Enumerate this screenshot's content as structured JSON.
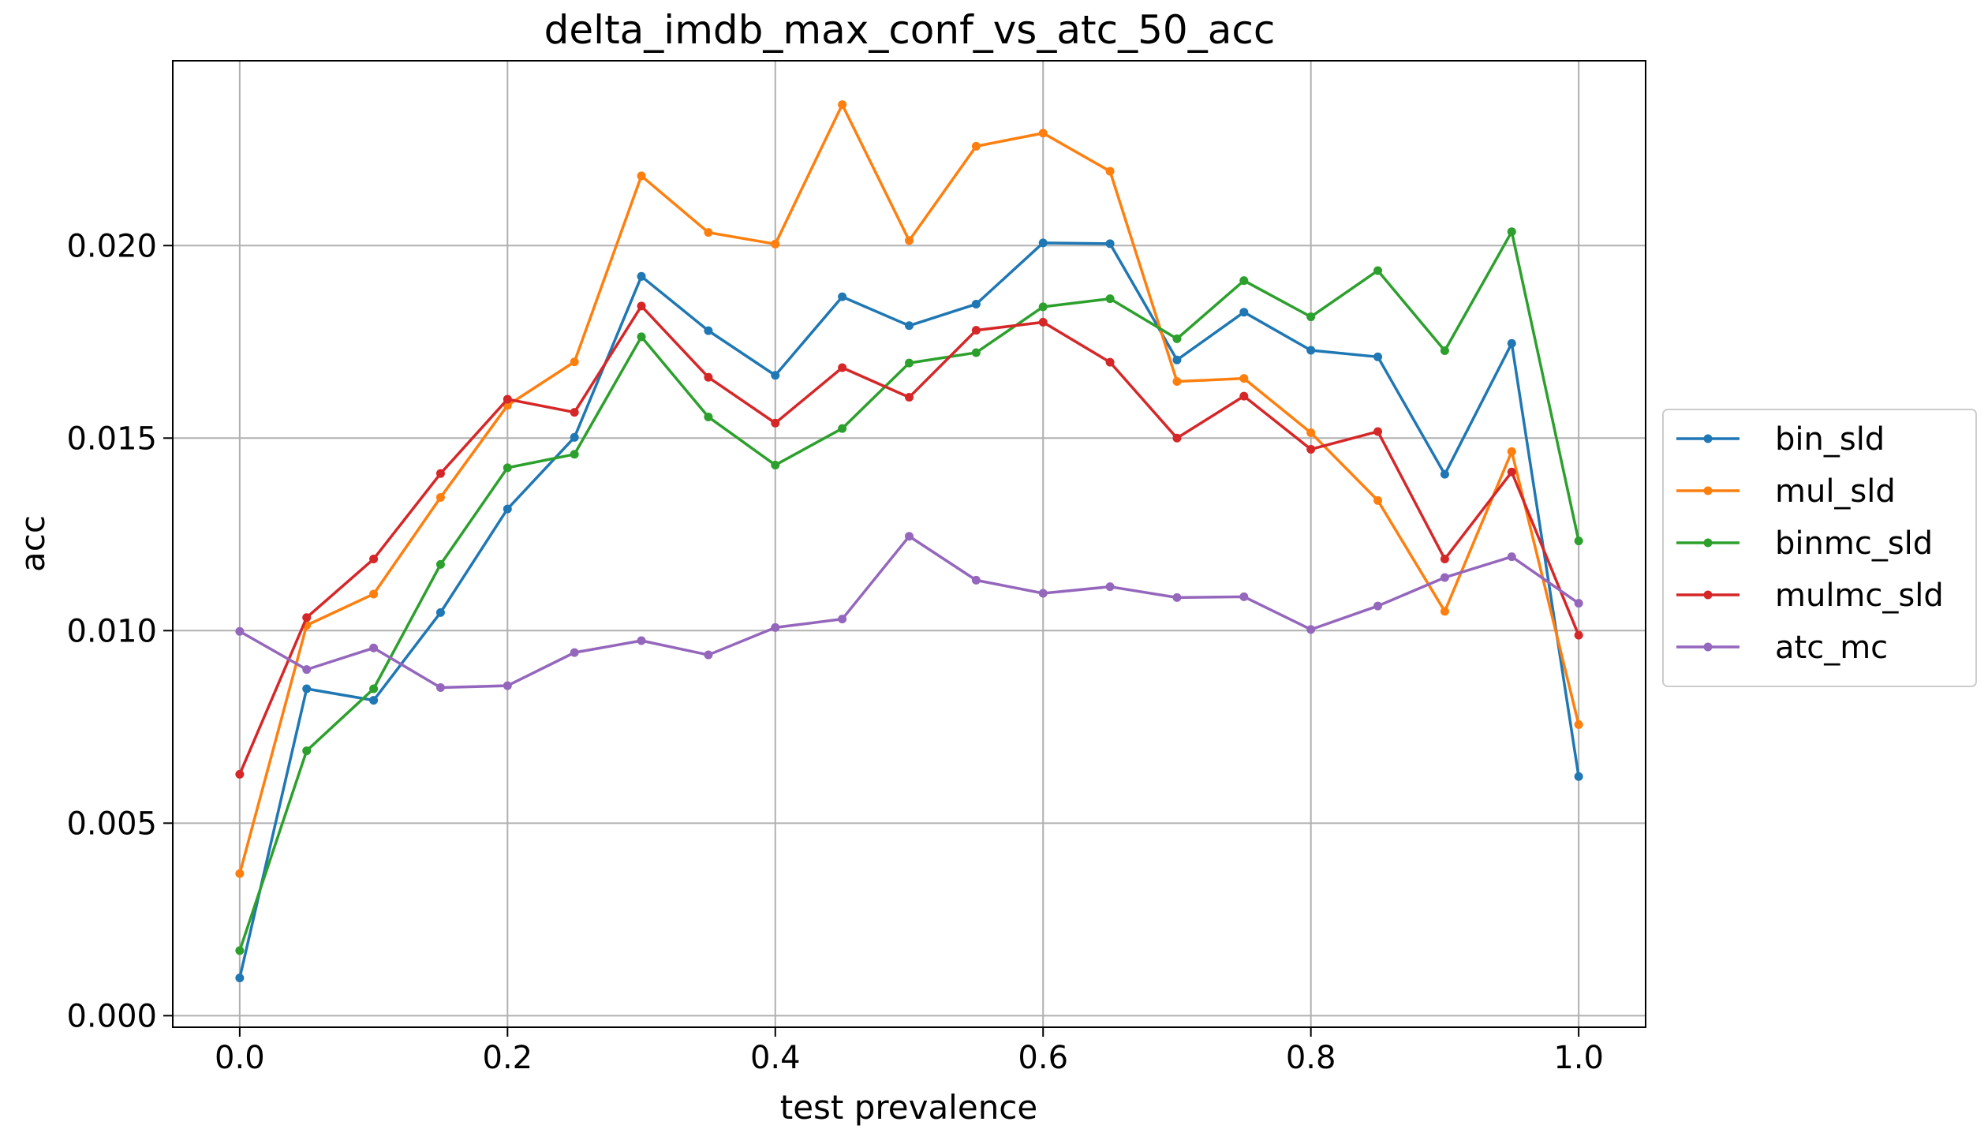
{
  "chart_data": {
    "type": "line",
    "title": "delta_imdb_max_conf_vs_atc_50_acc",
    "xlabel": "test prevalence",
    "ylabel": "acc",
    "xlim": [
      -0.05,
      1.05
    ],
    "ylim": [
      -0.0003,
      0.0248
    ],
    "grid": true,
    "legend_position": "right-center, outside plot",
    "x": [
      0.0,
      0.05,
      0.1,
      0.15,
      0.2,
      0.25,
      0.3,
      0.35,
      0.4,
      0.45,
      0.5,
      0.55,
      0.6,
      0.65,
      0.7,
      0.75,
      0.8,
      0.85,
      0.9,
      0.95,
      1.0
    ],
    "x_ticks": [
      0.0,
      0.2,
      0.4,
      0.6,
      0.8,
      1.0
    ],
    "x_tick_labels": [
      "0.0",
      "0.2",
      "0.4",
      "0.6",
      "0.8",
      "1.0"
    ],
    "y_ticks": [
      0.0,
      0.005,
      0.01,
      0.015,
      0.02
    ],
    "y_tick_labels": [
      "0.000",
      "0.005",
      "0.010",
      "0.015",
      "0.020"
    ],
    "series": [
      {
        "name": "bin_sld",
        "color": "#1f77b4",
        "values": [
          0.00098,
          0.00849,
          0.00819,
          0.01047,
          0.01316,
          0.01502,
          0.0192,
          0.01779,
          0.01663,
          0.01867,
          0.01792,
          0.01848,
          0.02007,
          0.02005,
          0.01703,
          0.01827,
          0.01728,
          0.01711,
          0.01406,
          0.01746,
          0.00621
        ]
      },
      {
        "name": "mul_sld",
        "color": "#ff7f0e",
        "values": [
          0.00369,
          0.01014,
          0.01095,
          0.01346,
          0.01585,
          0.01698,
          0.02181,
          0.02034,
          0.02004,
          0.02366,
          0.02013,
          0.02258,
          0.02292,
          0.02193,
          0.01647,
          0.01655,
          0.01514,
          0.01338,
          0.0105,
          0.01465,
          0.00756
        ]
      },
      {
        "name": "binmc_sld",
        "color": "#2ca02c",
        "values": [
          0.00169,
          0.00688,
          0.00849,
          0.01172,
          0.01423,
          0.01458,
          0.01763,
          0.01555,
          0.0143,
          0.01525,
          0.01695,
          0.01722,
          0.01841,
          0.01862,
          0.01758,
          0.01909,
          0.01815,
          0.01935,
          0.01727,
          0.02036,
          0.01233
        ]
      },
      {
        "name": "mulmc_sld",
        "color": "#d62728",
        "values": [
          0.00627,
          0.01034,
          0.01186,
          0.01408,
          0.01601,
          0.01567,
          0.01843,
          0.01658,
          0.01539,
          0.01683,
          0.01606,
          0.0178,
          0.01801,
          0.01697,
          0.015,
          0.01609,
          0.01471,
          0.01517,
          0.01186,
          0.01412,
          0.00988
        ]
      },
      {
        "name": "atc_mc",
        "color": "#9467bd",
        "values": [
          0.00998,
          0.00899,
          0.00955,
          0.00852,
          0.00857,
          0.00943,
          0.00974,
          0.00937,
          0.01008,
          0.0103,
          0.01245,
          0.01131,
          0.01097,
          0.01114,
          0.01086,
          0.01088,
          0.01003,
          0.01064,
          0.01138,
          0.01192,
          0.01071
        ]
      }
    ]
  }
}
